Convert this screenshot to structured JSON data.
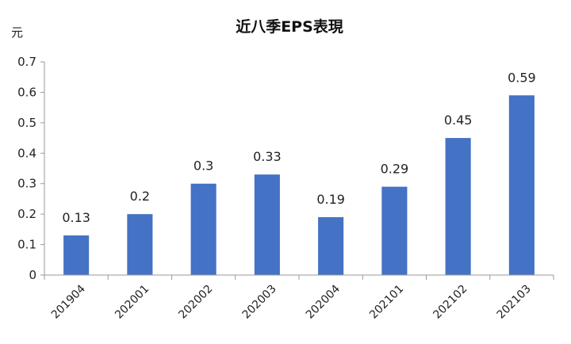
{
  "chart_data": {
    "type": "bar",
    "title": "近八季EPS表現",
    "unit_label": "元",
    "categories": [
      "201904",
      "202001",
      "202002",
      "202003",
      "202004",
      "202101",
      "202102",
      "202103"
    ],
    "values": [
      0.13,
      0.2,
      0.3,
      0.33,
      0.19,
      0.29,
      0.45,
      0.59
    ],
    "data_labels": [
      "0.13",
      "0.2",
      "0.3",
      "0.33",
      "0.19",
      "0.29",
      "0.45",
      "0.59"
    ],
    "yticks": [
      "0",
      "0.1",
      "0.2",
      "0.3",
      "0.4",
      "0.5",
      "0.6",
      "0.7"
    ],
    "ylim": [
      0,
      0.7
    ],
    "grid": false,
    "legend": "none",
    "bar_color": "#4472C4"
  }
}
